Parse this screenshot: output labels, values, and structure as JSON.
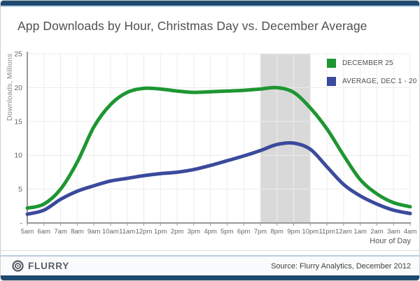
{
  "colors": {
    "top_bar": "#1e4a70",
    "accent_line": "#b7cfe3",
    "bottom_bar": "#1e4a70",
    "grid": "#ececec",
    "axis": "#999999",
    "tick_label": "#666666",
    "band": "#d9d9d9",
    "logo": "#575d66"
  },
  "chart_data": {
    "type": "line",
    "title": "App Downloads by Hour, Christmas Day vs. December Average",
    "xlabel": "Hour of Day",
    "ylabel": "Downloads, Millions",
    "ylim": [
      0,
      25
    ],
    "grid": true,
    "legend_position": "top-right",
    "x": [
      "5am",
      "6am",
      "7am",
      "8am",
      "9am",
      "10am",
      "11am",
      "12pm",
      "1pm",
      "2pm",
      "3pm",
      "4pm",
      "5pm",
      "6pm",
      "7pm",
      "8pm",
      "9pm",
      "10pm",
      "11pm",
      "12am",
      "1am",
      "2am",
      "3am",
      "4am"
    ],
    "y_ticks": [
      {
        "value": 25,
        "label": "25"
      },
      {
        "value": 20,
        "label": "20"
      },
      {
        "value": 15,
        "label": "15"
      },
      {
        "value": 10,
        "label": "10"
      },
      {
        "value": 5,
        "label": "5"
      },
      {
        "value": 0,
        "label": "-"
      }
    ],
    "highlight_band": {
      "from": "7pm",
      "to": "10pm",
      "color": "#d9d9d9"
    },
    "series": [
      {
        "name": "DECEMBER 25",
        "color": "#1e9632",
        "values": [
          2.2,
          2.8,
          5.0,
          9.0,
          14.2,
          17.5,
          19.3,
          19.9,
          19.8,
          19.5,
          19.3,
          19.4,
          19.5,
          19.6,
          19.8,
          20.0,
          19.3,
          17.0,
          13.9,
          10.0,
          6.4,
          4.3,
          3.0,
          2.4
        ]
      },
      {
        "name": "AVERAGE, DEC 1 - 20",
        "color": "#3a4a9c",
        "values": [
          1.3,
          1.9,
          3.5,
          4.7,
          5.5,
          6.2,
          6.6,
          7.0,
          7.3,
          7.5,
          7.9,
          8.5,
          9.2,
          9.9,
          10.7,
          11.6,
          11.8,
          10.9,
          8.3,
          5.7,
          4.0,
          2.8,
          1.9,
          1.4
        ]
      }
    ]
  },
  "footer": {
    "logo_text": "FLURRY",
    "source": "Source: Flurry Analytics, December 2012"
  }
}
